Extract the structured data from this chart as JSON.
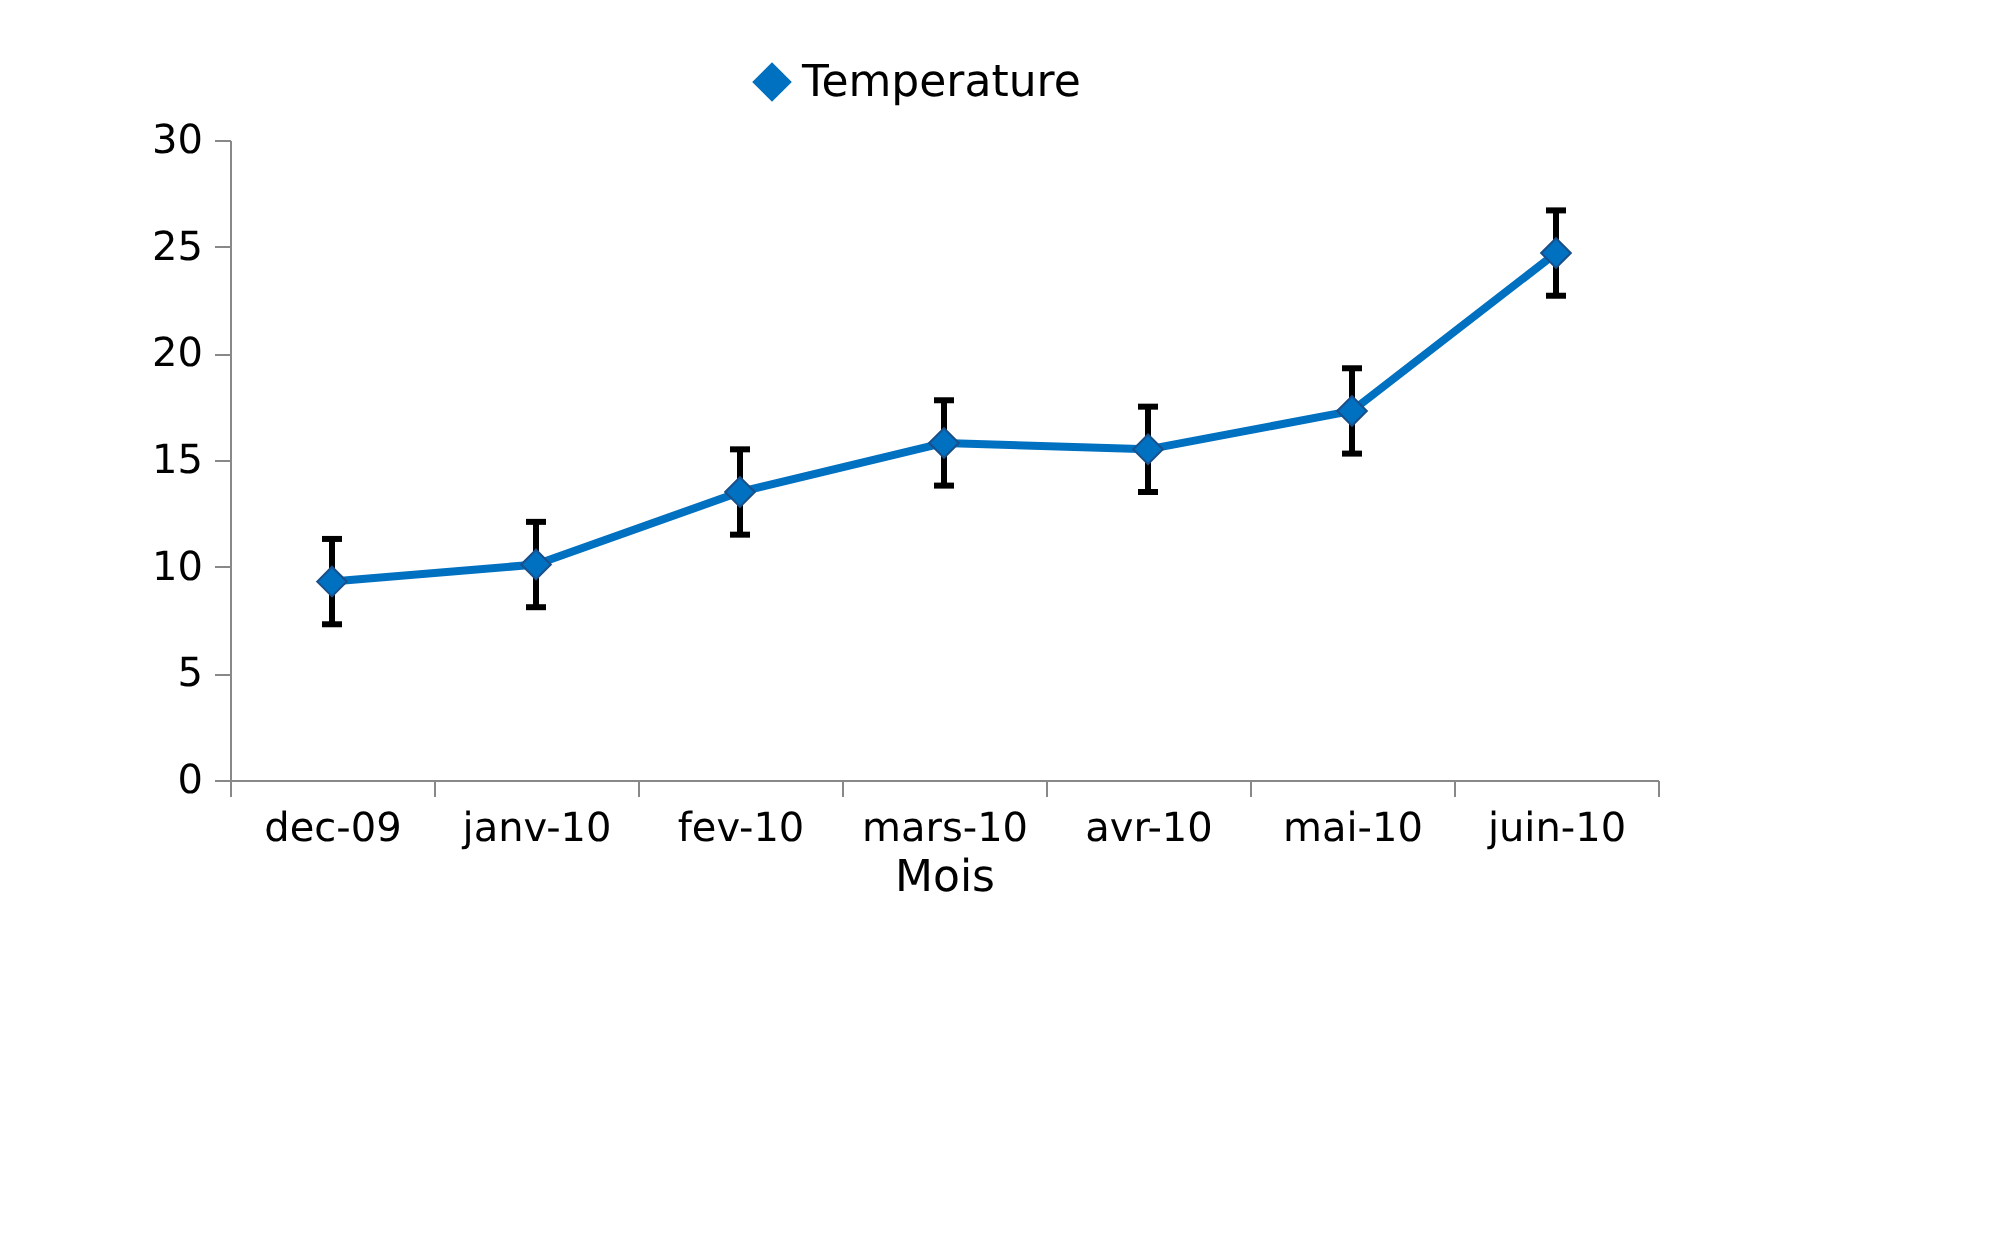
{
  "chart_data": {
    "type": "line",
    "xlabel": "Mois",
    "categories": [
      "dec-09",
      "janv-10",
      "fev-10",
      "mars-10",
      "avr-10",
      "mai-10",
      "juin-10"
    ],
    "series": [
      {
        "name": "Temperature",
        "color": "#0070c0",
        "values": [
          9.3,
          10.1,
          13.5,
          15.8,
          15.5,
          17.3,
          24.7
        ],
        "errors": [
          2.0,
          2.0,
          2.0,
          2.0,
          2.0,
          2.0,
          2.0
        ]
      }
    ],
    "ylim": [
      0,
      30
    ],
    "yticks": [
      0,
      5,
      10,
      15,
      20,
      25,
      30
    ],
    "grid": false,
    "legend": "top",
    "marker": "diamond",
    "line_style": "solid"
  }
}
